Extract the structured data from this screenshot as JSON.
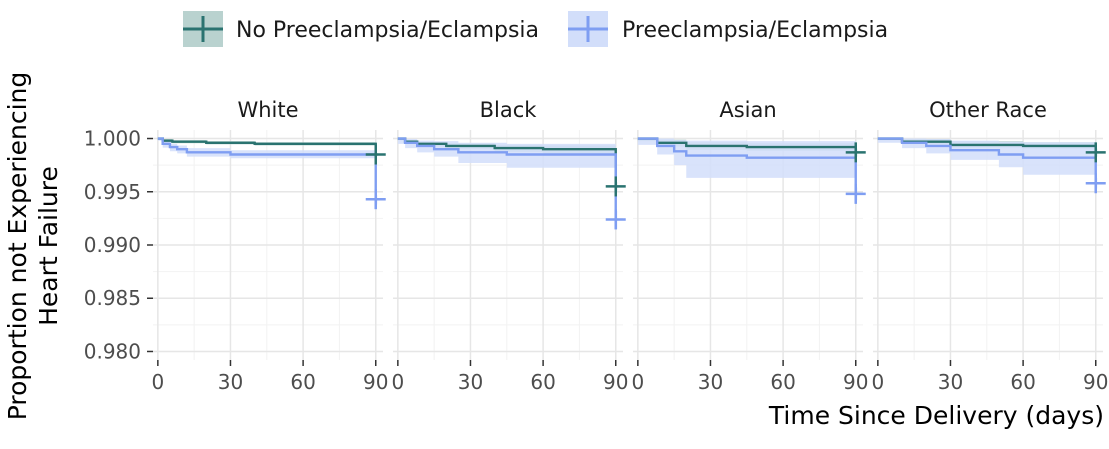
{
  "chart_data": {
    "type": "line",
    "chart_subtype": "kaplan-meier step curves, faceted",
    "xlabel": "Time Since Delivery (days)",
    "ylabel_lines": [
      "Proportion not Experiencing",
      "Heart Failure"
    ],
    "xlim": [
      -2,
      93
    ],
    "ylim": [
      0.9792,
      1.0008
    ],
    "xticks": [
      0,
      30,
      60,
      90
    ],
    "yticks": [
      0.98,
      0.985,
      0.99,
      0.995,
      1.0
    ],
    "ytick_labels": [
      "0.980",
      "0.985",
      "0.990",
      "0.995",
      "1.000"
    ],
    "grid": true,
    "legend_position": "top",
    "series": [
      {
        "name": "No Preeclampsia/Eclampsia",
        "color": "#2a7370",
        "fill": "#b9d2cf"
      },
      {
        "name": "Preeclampsia/Eclampsia",
        "color": "#7f9ef2",
        "fill": "#d2defa"
      }
    ],
    "facets": [
      {
        "label": "White",
        "curves": [
          {
            "x": [
              0,
              2,
              6,
              20,
              40,
              88,
              90
            ],
            "y": [
              1.0,
              0.9998,
              0.9997,
              0.9996,
              0.9995,
              0.9995,
              0.9985
            ],
            "lower": [
              0.99995,
              0.99965,
              0.99955,
              0.99945,
              0.99935,
              0.99935,
              0.99835
            ],
            "upper": [
              1.0,
              0.99995,
              0.99985,
              0.99975,
              0.99965,
              0.99965,
              0.99865
            ],
            "censor_x": 90,
            "censor_y": 0.9985
          },
          {
            "x": [
              0,
              2,
              5,
              8,
              12,
              30,
              88,
              90
            ],
            "y": [
              1.0,
              0.9995,
              0.9992,
              0.999,
              0.9987,
              0.9985,
              0.9985,
              0.9943
            ],
            "lower": [
              0.9998,
              0.99915,
              0.9988,
              0.9986,
              0.9983,
              0.99815,
              0.99815,
              0.9938
            ],
            "upper": [
              1.0,
              0.9998,
              0.9995,
              0.99935,
              0.9991,
              0.9989,
              0.9989,
              0.9947
            ],
            "censor_x": 90,
            "censor_y": 0.9943
          }
        ]
      },
      {
        "label": "Black",
        "curves": [
          {
            "x": [
              0,
              3,
              8,
              20,
              40,
              60,
              88,
              90
            ],
            "y": [
              1.0,
              0.9997,
              0.9995,
              0.9993,
              0.9991,
              0.999,
              0.999,
              0.9955
            ],
            "lower": [
              0.99985,
              0.9995,
              0.99925,
              0.999,
              0.99875,
              0.9986,
              0.9986,
              0.9951
            ],
            "upper": [
              1.0,
              0.99985,
              0.99965,
              0.99955,
              0.9994,
              0.99935,
              0.99935,
              0.9959
            ],
            "censor_x": 90,
            "censor_y": 0.9955
          },
          {
            "x": [
              0,
              3,
              8,
              15,
              25,
              45,
              88,
              90
            ],
            "y": [
              1.0,
              0.9996,
              0.9993,
              0.999,
              0.9987,
              0.9985,
              0.9985,
              0.9924
            ],
            "lower": [
              0.9995,
              0.9991,
              0.9987,
              0.9983,
              0.9977,
              0.99725,
              0.99725,
              0.9915
            ],
            "upper": [
              1.0,
              0.99995,
              0.9998,
              0.99975,
              0.9996,
              0.9995,
              0.9995,
              0.9932
            ],
            "censor_x": 90,
            "censor_y": 0.9924
          }
        ]
      },
      {
        "label": "Asian",
        "curves": [
          {
            "x": [
              0,
              8,
              20,
              45,
              88,
              90
            ],
            "y": [
              1.0,
              0.9996,
              0.9993,
              0.9992,
              0.9992,
              0.9987
            ],
            "lower": [
              0.99975,
              0.99925,
              0.99895,
              0.99885,
              0.99885,
              0.9983
            ],
            "upper": [
              1.0,
              0.9999,
              0.99965,
              0.99955,
              0.99955,
              0.99905
            ],
            "censor_x": 90,
            "censor_y": 0.9987
          },
          {
            "x": [
              0,
              8,
              15,
              20,
              45,
              88,
              90
            ],
            "y": [
              1.0,
              0.9993,
              0.9988,
              0.9984,
              0.9982,
              0.9982,
              0.9948
            ],
            "lower": [
              0.9994,
              0.9985,
              0.9975,
              0.9963,
              0.9963,
              0.9963,
              0.9942
            ],
            "upper": [
              1.0,
              1.0,
              0.99985,
              0.9998,
              0.99975,
              0.99975,
              0.9954
            ],
            "censor_x": 90,
            "censor_y": 0.9948
          }
        ]
      },
      {
        "label": "Other Race",
        "curves": [
          {
            "x": [
              0,
              10,
              30,
              60,
              88,
              90
            ],
            "y": [
              1.0,
              0.9997,
              0.9994,
              0.9993,
              0.9993,
              0.9987
            ],
            "lower": [
              0.99985,
              0.9995,
              0.99915,
              0.99905,
              0.99905,
              0.9983
            ],
            "upper": [
              1.0,
              0.99995,
              0.99975,
              0.99965,
              0.99965,
              0.99905
            ],
            "censor_x": 90,
            "censor_y": 0.9987
          },
          {
            "x": [
              0,
              10,
              20,
              30,
              50,
              60,
              88,
              90
            ],
            "y": [
              1.0,
              0.9996,
              0.9993,
              0.9989,
              0.9985,
              0.9982,
              0.9982,
              0.9958
            ],
            "lower": [
              0.9996,
              0.9991,
              0.9986,
              0.998,
              0.9973,
              0.9966,
              0.9966,
              0.9953
            ],
            "upper": [
              1.0,
              1.0,
              0.99995,
              0.9998,
              0.9997,
              0.99965,
              0.99965,
              0.9963
            ],
            "censor_x": 90,
            "censor_y": 0.9958
          }
        ]
      }
    ]
  }
}
